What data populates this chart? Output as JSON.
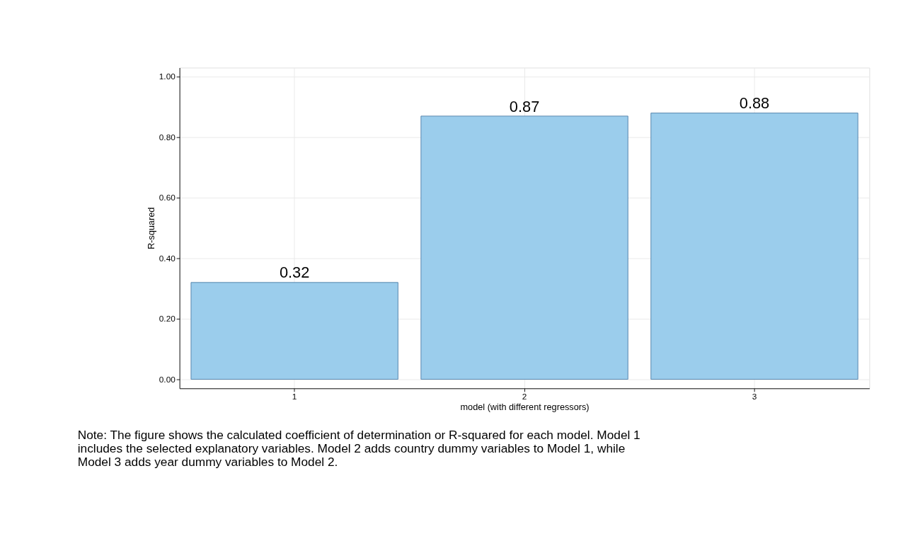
{
  "chart_data": {
    "type": "bar",
    "xlabel": "model (with different regressors)",
    "ylabel": "R-squared",
    "categories": [
      "1",
      "2",
      "3"
    ],
    "values": [
      0.32,
      0.87,
      0.88
    ],
    "color": "#9bcdec",
    "ylim": [
      -0.03,
      1.03
    ],
    "yticks": [
      {
        "value": 0,
        "label": "0.00"
      },
      {
        "value": 0.2,
        "label": "0.20"
      },
      {
        "value": 0.4,
        "label": "0.40"
      },
      {
        "value": 0.6,
        "label": "0.60"
      },
      {
        "value": 0.8,
        "label": "0.80"
      },
      {
        "value": 1.0,
        "label": "1.00"
      }
    ],
    "grid": true,
    "data_labels": true,
    "annotations": [
      "Note: The figure shows the calculated coefficient of determination or R-squared for each model. Model 1 includes the selected explanatory variables. Model 2 adds country dummy variables to Model 1, while Model 3 adds year dummy variables to Model 2."
    ]
  }
}
